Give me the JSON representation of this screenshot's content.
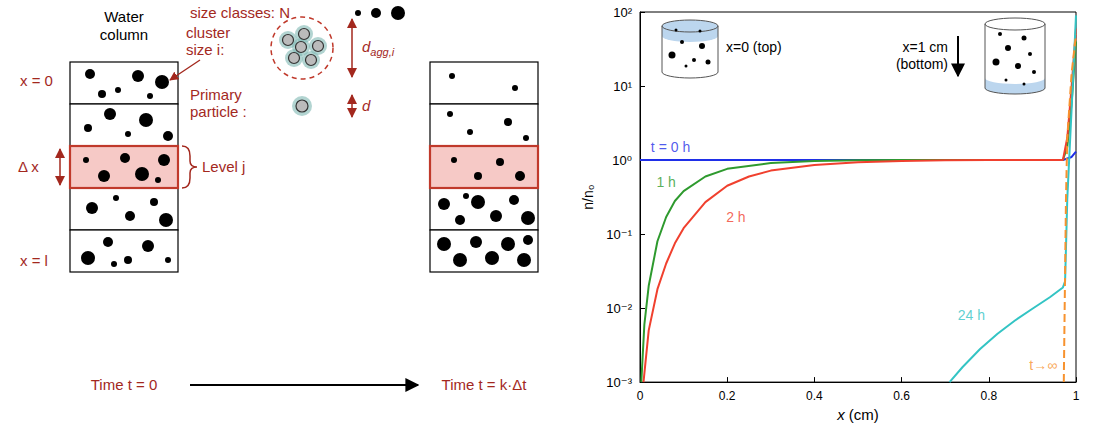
{
  "diagram": {
    "size_classes": "size classes: N",
    "water_column": "Water column",
    "x_top": "x = 0",
    "x_bottom": "x = l",
    "delta_x": "Δ x",
    "level": "Level j",
    "cluster": "cluster size i:",
    "d_agg": {
      "symbol": "d",
      "subscript": "agg,i"
    },
    "primary": "Primary particle :",
    "d": "d",
    "time_start": "Time t = 0",
    "time_end": "Time t = k·Δt"
  },
  "insets": {
    "top": "x=0 (top)",
    "bottom": [
      "x=1 cm",
      "(bottom)"
    ]
  },
  "chart_data": {
    "type": "line",
    "xlabel": "x (cm)",
    "ylabel": "n/n₀",
    "xlim": [
      0,
      1
    ],
    "xticks": [
      0,
      0.2,
      0.4,
      0.6,
      0.8,
      1
    ],
    "ylim": [
      0.001,
      100
    ],
    "yticks": [
      {
        "value": 0.001,
        "label": "10⁻³"
      },
      {
        "value": 0.01,
        "label": "10⁻²"
      },
      {
        "value": 0.1,
        "label": "10⁻¹"
      },
      {
        "value": 1,
        "label": "10⁰"
      },
      {
        "value": 10,
        "label": "10¹"
      },
      {
        "value": 100,
        "label": "10²"
      }
    ],
    "log": "y",
    "grid": false,
    "series": [
      {
        "name": "t = 0 h",
        "color": "#1f2fe8",
        "marker": "none",
        "line_style": "solid",
        "x": [
          0,
          0.97,
          0.99,
          1
        ],
        "values": [
          1,
          1,
          1.1,
          1.3
        ]
      },
      {
        "name": "1 h",
        "color": "#2e9a2e",
        "marker": "none",
        "line_style": "solid",
        "x": [
          0.003,
          0.01,
          0.02,
          0.04,
          0.06,
          0.08,
          0.1,
          0.15,
          0.2,
          0.3,
          0.4,
          0.5,
          0.6,
          0.97,
          0.98,
          0.99,
          1
        ],
        "values": [
          0.001,
          0.006,
          0.02,
          0.08,
          0.17,
          0.28,
          0.38,
          0.6,
          0.76,
          0.91,
          0.97,
          0.99,
          1,
          1,
          1.5,
          6,
          40
        ]
      },
      {
        "name": "2 h",
        "color": "#f0402e",
        "marker": "none",
        "line_style": "solid",
        "x": [
          0.008,
          0.02,
          0.04,
          0.06,
          0.08,
          0.1,
          0.15,
          0.2,
          0.25,
          0.3,
          0.4,
          0.5,
          0.6,
          0.7,
          0.8,
          0.97,
          0.98,
          0.99,
          1
        ],
        "values": [
          0.001,
          0.005,
          0.018,
          0.04,
          0.075,
          0.12,
          0.27,
          0.45,
          0.6,
          0.72,
          0.86,
          0.93,
          0.97,
          0.99,
          1,
          1,
          2,
          10,
          60
        ]
      },
      {
        "name": "24 h",
        "color": "#33c4c4",
        "marker": "none",
        "line_style": "solid",
        "x": [
          0.71,
          0.74,
          0.78,
          0.82,
          0.86,
          0.9,
          0.94,
          0.97,
          0.975,
          0.98,
          0.99,
          1
        ],
        "values": [
          0.001,
          0.0016,
          0.0028,
          0.0045,
          0.0068,
          0.0098,
          0.014,
          0.019,
          0.023,
          0.3,
          5,
          90
        ]
      },
      {
        "name": "t→∞",
        "color": "#f7922e",
        "marker": "none",
        "line_style": "dashed",
        "x": [
          0.972,
          0.974,
          0.977,
          0.98,
          0.99,
          1
        ],
        "values": [
          0.001,
          0.01,
          0.3,
          2,
          15,
          50
        ]
      }
    ],
    "annotations": [
      {
        "series": "t = 0 h",
        "x": 0.07,
        "y": 1.5
      },
      {
        "series": "1 h",
        "x": 0.06,
        "y": 0.5
      },
      {
        "series": "2 h",
        "x": 0.22,
        "y": 0.17
      },
      {
        "series": "24 h",
        "x": 0.76,
        "y": 0.008
      },
      {
        "series": "t→∞",
        "x": 0.925,
        "y": 0.0017
      }
    ]
  }
}
